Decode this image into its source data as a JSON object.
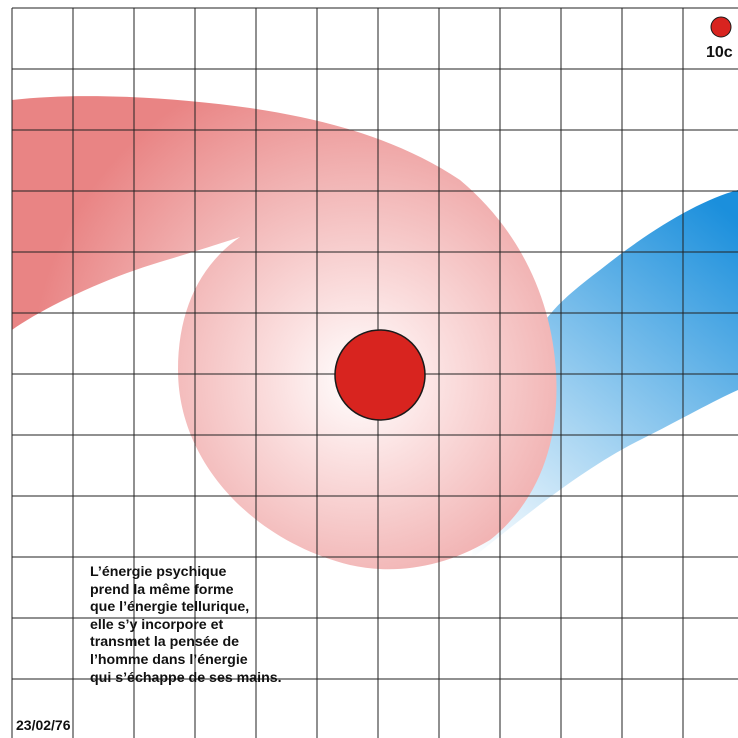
{
  "caption": {
    "lines": [
      "L’énergie psychique",
      "prend la même forme",
      "que l’énergie tellurique,",
      "elle s’y incorpore et",
      "transmet la pensée de",
      "l’homme dans l’énergie",
      "qui s’échappe de ses mains."
    ]
  },
  "date": "23/02/76",
  "scale": {
    "label": "10c"
  },
  "colors": {
    "grid_line": "#222222",
    "pink_energy": "#e87a7a",
    "blue_energy": "#1f92de",
    "center_dot": "#d8241f",
    "dot_outline": "#1a1a1a"
  }
}
